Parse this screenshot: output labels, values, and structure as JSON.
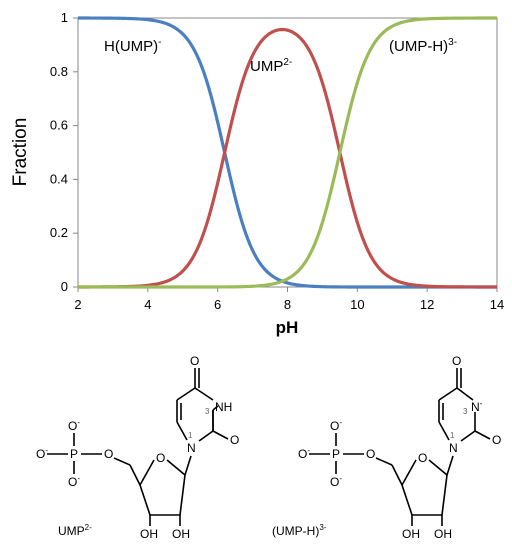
{
  "chart_data": {
    "type": "line",
    "xlabel": "pH",
    "ylabel": "Fraction",
    "xlim": [
      2,
      14
    ],
    "ylim": [
      0,
      1
    ],
    "x_ticks": [
      "2",
      "4",
      "6",
      "8",
      "10",
      "12",
      "14"
    ],
    "y_ticks": [
      "0",
      "0.2",
      "0.4",
      "0.6",
      "0.8",
      "1"
    ],
    "grid": false,
    "legend": "none",
    "pKa": [
      6.2,
      9.5
    ],
    "series": [
      {
        "name": "H(UMP)-",
        "color": "#4a7fc1",
        "x": [
          2,
          3,
          4,
          4.5,
          5,
          5.5,
          6,
          6.2,
          6.5,
          7,
          7.5,
          8,
          8.5,
          9,
          10,
          12,
          14
        ],
        "y": [
          1.0,
          1.0,
          0.994,
          0.981,
          0.94,
          0.834,
          0.613,
          0.5,
          0.334,
          0.137,
          0.048,
          0.016,
          0.005,
          0.0015,
          0.0001,
          0,
          0
        ]
      },
      {
        "name": "UMP2-",
        "color": "#c0504d",
        "x": [
          2,
          3,
          4,
          4.5,
          5,
          5.5,
          6,
          6.2,
          6.5,
          7,
          7.5,
          7.85,
          8,
          8.5,
          9,
          9.5,
          10,
          10.5,
          11,
          12,
          14
        ],
        "y": [
          0,
          0.001,
          0.006,
          0.019,
          0.059,
          0.166,
          0.386,
          0.499,
          0.664,
          0.861,
          0.947,
          0.958,
          0.956,
          0.934,
          0.758,
          0.5,
          0.24,
          0.091,
          0.031,
          0.003,
          0
        ]
      },
      {
        "name": "(UMP-H)3-",
        "color": "#9bbb59",
        "x": [
          2,
          6,
          7,
          7.5,
          8,
          8.5,
          9,
          9.5,
          10,
          10.5,
          11,
          11.5,
          12,
          14
        ],
        "y": [
          0,
          0.001,
          0.002,
          0.005,
          0.031,
          0.091,
          0.24,
          0.5,
          0.76,
          0.909,
          0.969,
          0.99,
          0.997,
          1.0
        ]
      }
    ]
  },
  "annotations": {
    "h_ump": {
      "base": "H(UMP)",
      "sup": "-"
    },
    "ump": {
      "base": "UMP",
      "sup": "2-"
    },
    "ump_h": {
      "base": "(UMP-H)",
      "sup": "3-"
    }
  },
  "structures": {
    "left_caption": {
      "base": "UMP",
      "sup": "2-"
    },
    "right_caption": {
      "base": "(UMP-H)",
      "sup": "3-"
    },
    "atoms": {
      "P": "P",
      "O": "O",
      "O_minus": "O",
      "minus": "-",
      "NH": "NH",
      "N": "N",
      "N_minus_sup": "-",
      "OH": "OH",
      "n1": "1",
      "n3": "3"
    }
  }
}
